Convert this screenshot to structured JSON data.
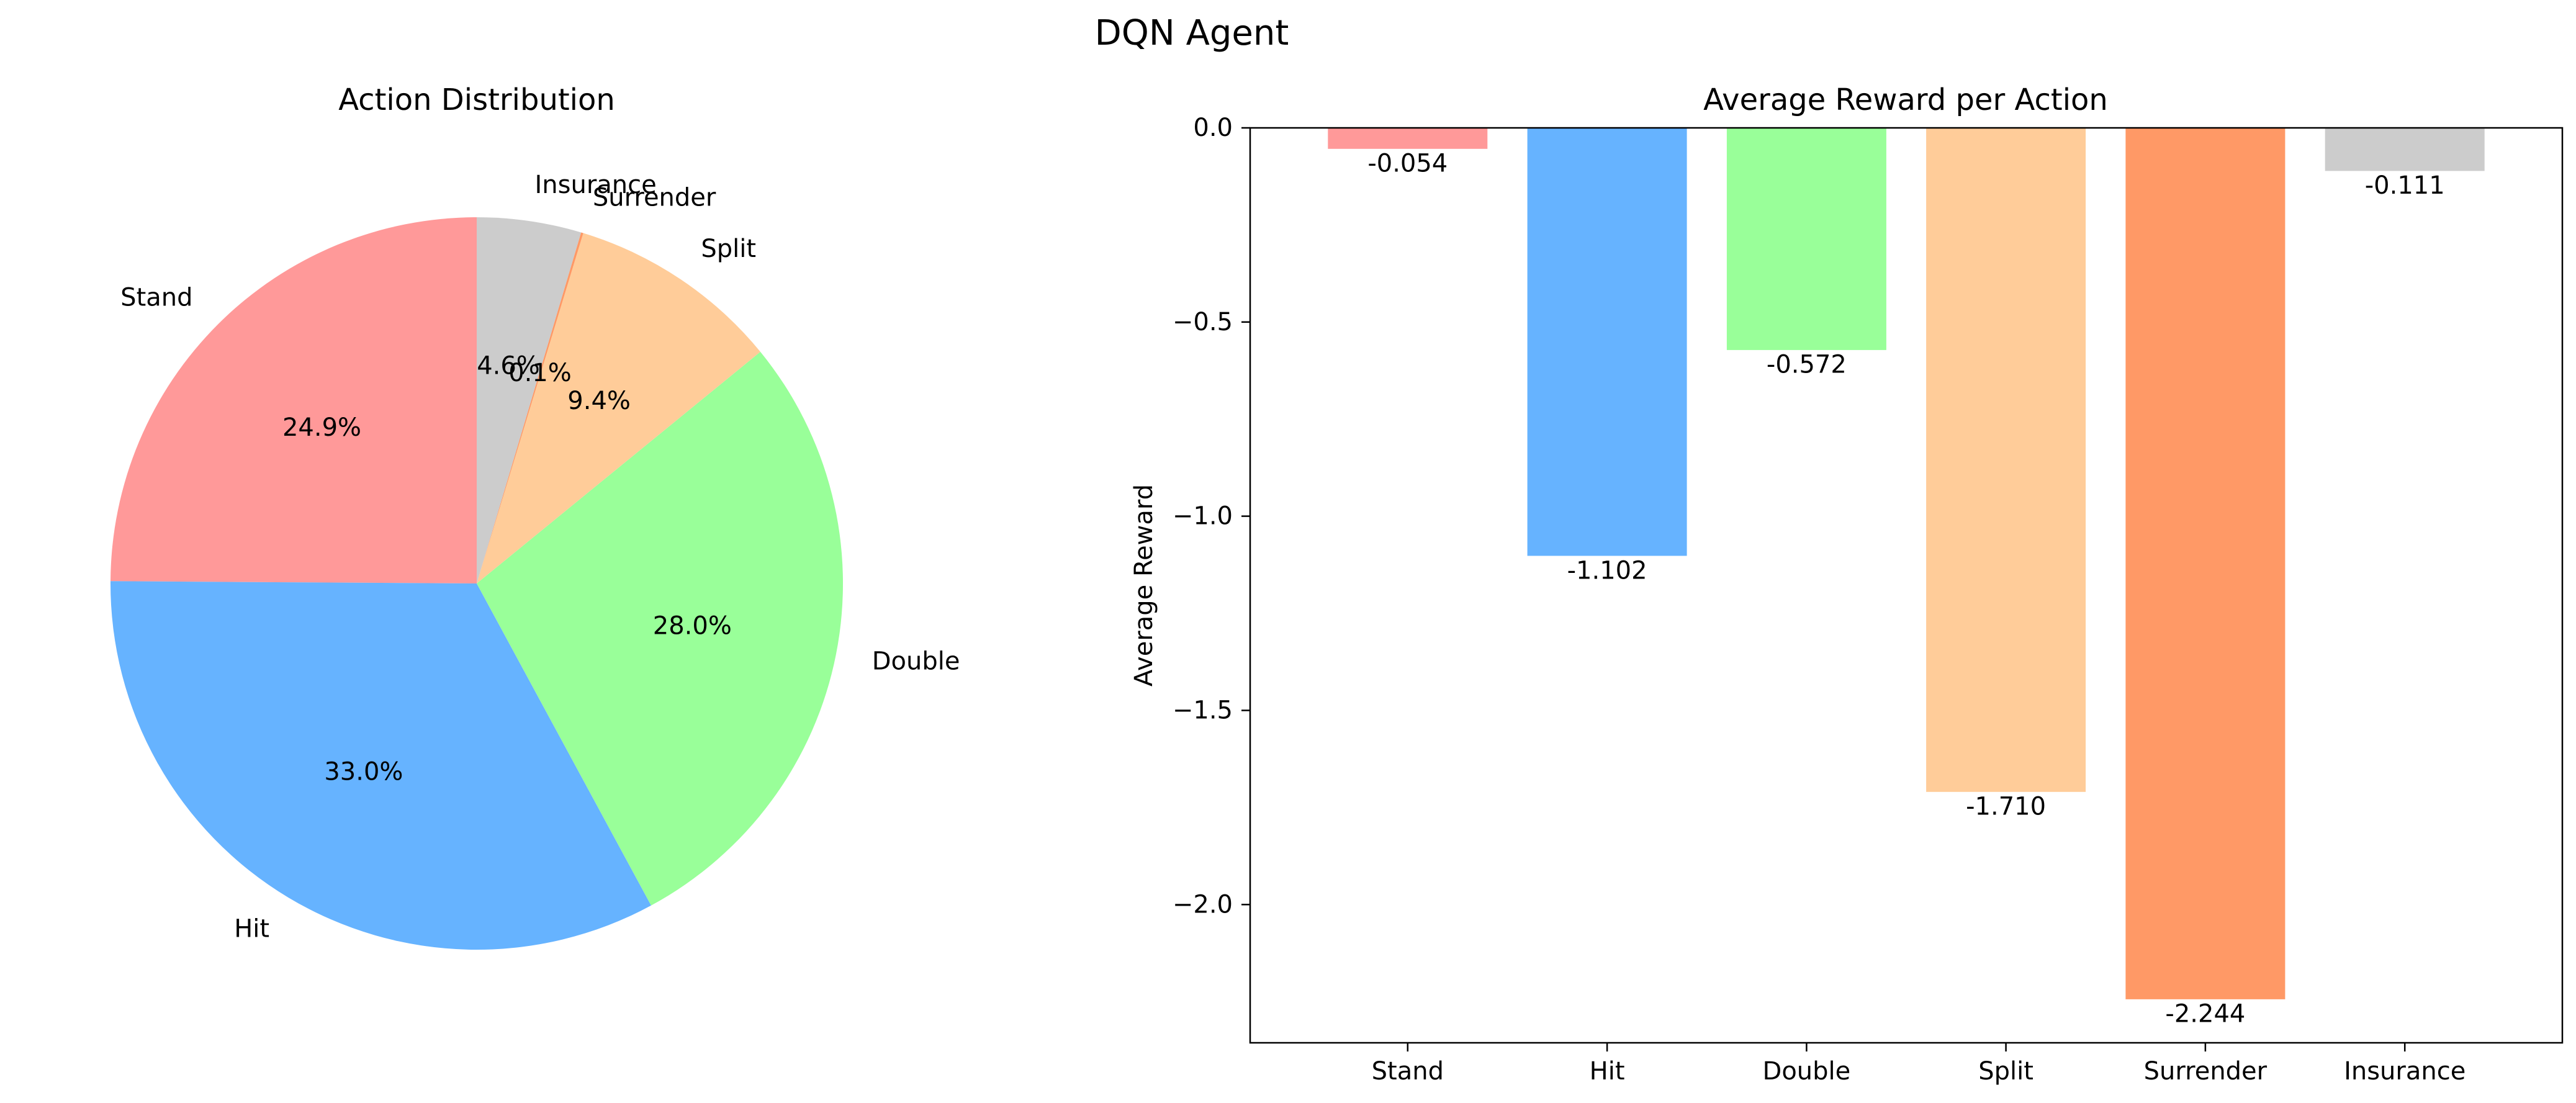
{
  "figure": {
    "title": "DQN Agent"
  },
  "chart_data": [
    {
      "type": "pie",
      "title": "Action Distribution",
      "labels": [
        "Stand",
        "Hit",
        "Double",
        "Split",
        "Surrender",
        "Insurance"
      ],
      "values": [
        24.9,
        33.0,
        28.0,
        9.4,
        0.1,
        4.6
      ],
      "pct_labels": [
        "24.9%",
        "33.0%",
        "28.0%",
        "9.4%",
        "0.1%",
        "4.6%"
      ],
      "colors": [
        "#ff9999",
        "#66b3ff",
        "#99ff99",
        "#ffcc99",
        "#ff9966",
        "#cccccc"
      ],
      "start_angle_deg": 90,
      "direction": "counterclockwise"
    },
    {
      "type": "bar",
      "title": "Average Reward per Action",
      "categories": [
        "Stand",
        "Hit",
        "Double",
        "Split",
        "Surrender",
        "Insurance"
      ],
      "values": [
        -0.054,
        -1.102,
        -0.572,
        -1.71,
        -2.244,
        -0.111
      ],
      "value_labels": [
        "-0.054",
        "-1.102",
        "-0.572",
        "-1.710",
        "-2.244",
        "-0.111"
      ],
      "colors": [
        "#ff9999",
        "#66b3ff",
        "#99ff99",
        "#ffcc99",
        "#ff9966",
        "#cccccc"
      ],
      "xlabel": "",
      "ylabel": "Average Reward",
      "ylim": [
        -2.356,
        0.0
      ],
      "yticks": [
        0.0,
        -0.5,
        -1.0,
        -1.5,
        -2.0
      ],
      "ytick_labels": [
        "0.0",
        "−0.5",
        "−1.0",
        "−1.5",
        "−2.0"
      ],
      "grid": false
    }
  ]
}
